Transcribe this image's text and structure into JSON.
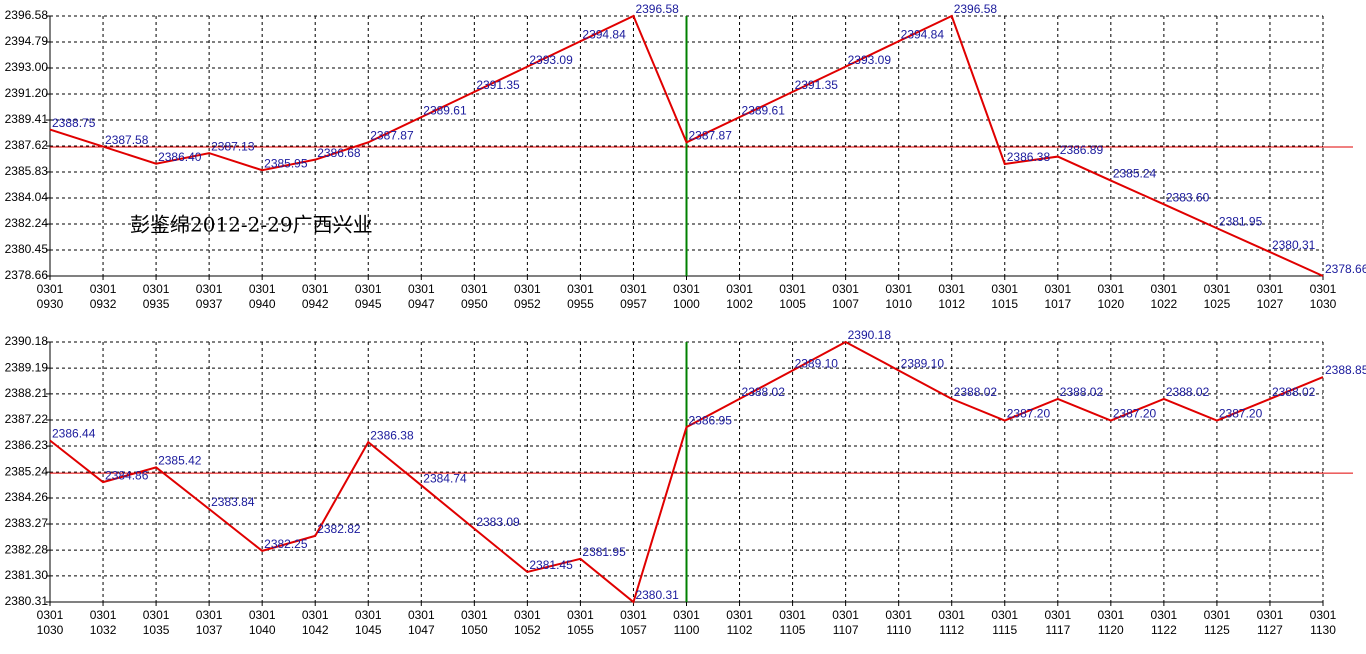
{
  "chart_data": [
    {
      "type": "line",
      "annotation": "彭鉴绵2012-2-29广西兴业",
      "categories": [
        [
          "0301",
          "0930"
        ],
        [
          "0301",
          "0932"
        ],
        [
          "0301",
          "0935"
        ],
        [
          "0301",
          "0937"
        ],
        [
          "0301",
          "0940"
        ],
        [
          "0301",
          "0942"
        ],
        [
          "0301",
          "0945"
        ],
        [
          "0301",
          "0947"
        ],
        [
          "0301",
          "0950"
        ],
        [
          "0301",
          "0952"
        ],
        [
          "0301",
          "0955"
        ],
        [
          "0301",
          "0957"
        ],
        [
          "0301",
          "1000"
        ],
        [
          "0301",
          "1002"
        ],
        [
          "0301",
          "1005"
        ],
        [
          "0301",
          "1007"
        ],
        [
          "0301",
          "1010"
        ],
        [
          "0301",
          "1012"
        ],
        [
          "0301",
          "1015"
        ],
        [
          "0301",
          "1017"
        ],
        [
          "0301",
          "1020"
        ],
        [
          "0301",
          "1022"
        ],
        [
          "0301",
          "1025"
        ],
        [
          "0301",
          "1027"
        ],
        [
          "0301",
          "1030"
        ]
      ],
      "values": [
        2388.75,
        2387.58,
        2386.4,
        2387.13,
        2385.95,
        2386.68,
        2387.87,
        2389.61,
        2391.35,
        2393.09,
        2394.84,
        2396.58,
        2387.87,
        2389.61,
        2391.35,
        2393.09,
        2394.84,
        2396.58,
        2386.38,
        2386.89,
        2385.24,
        2383.6,
        2381.95,
        2380.31,
        2378.66
      ],
      "value_labels": [
        "2388.75",
        "2387.58",
        "2386.40",
        "2387.13",
        "2385.95",
        "2386.68",
        "2387.87",
        "2389.61",
        "2391.35",
        "2393.09",
        "2394.84",
        "2396.58",
        "2387.87",
        "2389.61",
        "2391.35",
        "2393.09",
        "2394.84",
        "2396.58",
        "2386.38",
        "2386.89",
        "2385.24",
        "2383.60",
        "2381.95",
        "2380.31",
        "2378.66"
      ],
      "color": "#e00000",
      "ylim": [
        2378.66,
        2396.58
      ],
      "yticks": [
        2378.66,
        2380.45,
        2382.24,
        2384.04,
        2385.83,
        2387.62,
        2389.41,
        {
          "value": 2391.2,
          "label": "2391.20"
        },
        {
          "value": 2393,
          "label": "2393.00"
        },
        2394.79,
        2396.58
      ],
      "ref_line": 2387.55,
      "ref_color": "#e00000",
      "vline_at": 12,
      "vline_color": "#008000",
      "grid": true
    },
    {
      "type": "line",
      "categories": [
        [
          "0301",
          "1030"
        ],
        [
          "0301",
          "1032"
        ],
        [
          "0301",
          "1035"
        ],
        [
          "0301",
          "1037"
        ],
        [
          "0301",
          "1040"
        ],
        [
          "0301",
          "1042"
        ],
        [
          "0301",
          "1045"
        ],
        [
          "0301",
          "1047"
        ],
        [
          "0301",
          "1050"
        ],
        [
          "0301",
          "1052"
        ],
        [
          "0301",
          "1055"
        ],
        [
          "0301",
          "1057"
        ],
        [
          "0301",
          "1100"
        ],
        [
          "0301",
          "1102"
        ],
        [
          "0301",
          "1105"
        ],
        [
          "0301",
          "1107"
        ],
        [
          "0301",
          "1110"
        ],
        [
          "0301",
          "1112"
        ],
        [
          "0301",
          "1115"
        ],
        [
          "0301",
          "1117"
        ],
        [
          "0301",
          "1120"
        ],
        [
          "0301",
          "1122"
        ],
        [
          "0301",
          "1125"
        ],
        [
          "0301",
          "1127"
        ],
        [
          "0301",
          "1130"
        ]
      ],
      "values": [
        2386.44,
        2384.86,
        2385.42,
        2383.84,
        2382.25,
        2382.82,
        2386.38,
        2384.74,
        2383.09,
        2381.45,
        2381.95,
        2380.31,
        2386.95,
        2388.02,
        2389.1,
        2390.18,
        2389.1,
        2388.02,
        2387.2,
        2388.02,
        2387.2,
        2388.02,
        2387.2,
        2388.02,
        2388.85
      ],
      "value_labels": [
        "2386.44",
        "2384.86",
        "2385.42",
        "2383.84",
        "2382.25",
        "2382.82",
        "2386.38",
        "2384.74",
        "2383.09",
        "2381.45",
        "2381.95",
        "2380.31",
        "2386.95",
        "2388.02",
        "2389.10",
        "2390.18",
        "2389.10",
        "2388.02",
        "2387.20",
        "2388.02",
        "2387.20",
        "2388.02",
        "2387.20",
        "2388.02",
        "2388.85"
      ],
      "color": "#e00000",
      "ylim": [
        2380.31,
        2390.18
      ],
      "yticks": [
        2380.31,
        {
          "value": 2381.3,
          "label": "2381.30"
        },
        2382.28,
        2383.27,
        2384.26,
        2385.24,
        2386.23,
        2387.22,
        2388.21,
        2389.19,
        2390.18
      ],
      "ref_line": 2385.2,
      "ref_color": "#e00000",
      "vline_at": 12,
      "vline_color": "#008000",
      "grid": true
    }
  ]
}
